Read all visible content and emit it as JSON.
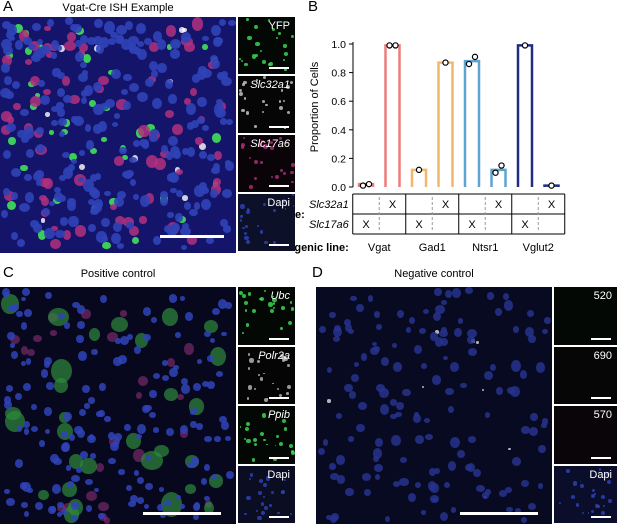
{
  "panels": {
    "A": {
      "letter": "A",
      "title": "Vgat-Cre ISH Example",
      "channels": [
        {
          "label": "YFP",
          "italic": false
        },
        {
          "label": "Slc32a1",
          "italic": true
        },
        {
          "label": "Slc17a6",
          "italic": true
        },
        {
          "label": "Dapi",
          "italic": false
        }
      ]
    },
    "B": {
      "letter": "B"
    },
    "C": {
      "letter": "C",
      "title": "Positive control",
      "channels": [
        {
          "label": "Ubc",
          "italic": true
        },
        {
          "label": "Polr2a",
          "italic": true
        },
        {
          "label": "Ppib",
          "italic": true
        },
        {
          "label": "Dapi",
          "italic": false
        }
      ]
    },
    "D": {
      "letter": "D",
      "title": "Negative control",
      "channels": [
        {
          "label": "520",
          "italic": false
        },
        {
          "label": "690",
          "italic": false
        },
        {
          "label": "570",
          "italic": false
        },
        {
          "label": "Dapi",
          "italic": false
        }
      ]
    }
  },
  "colors": {
    "vgat": "#ef7b7b",
    "gad1": "#f4b66a",
    "ntsr1": "#5fa3d1",
    "vglut2": "#232c84",
    "dapi_blue": "#2f43b8",
    "green_signal": "#3fe05a",
    "magenta_signal": "#b0307e"
  },
  "chart_data": {
    "type": "bar",
    "ylabel": "Proportion of Cells",
    "ylim": [
      0,
      1.0
    ],
    "yticks": [
      "0.0",
      "0.2",
      "0.4",
      "0.6",
      "0.8",
      "1.0"
    ],
    "yticks_values": [
      0,
      0.2,
      0.4,
      0.6,
      0.8,
      1.0
    ],
    "groups": [
      {
        "name": "Vgat",
        "bars": [
          {
            "probe": "Slc17a6",
            "value": 0.02,
            "points": [
              0.01,
              0.02
            ]
          },
          {
            "probe": "Slc32a1",
            "value": 0.99,
            "points": [
              0.99,
              0.99
            ]
          }
        ]
      },
      {
        "name": "Gad1",
        "bars": [
          {
            "probe": "Slc17a6",
            "value": 0.12,
            "points": [
              0.12
            ]
          },
          {
            "probe": "Slc32a1",
            "value": 0.87,
            "points": [
              0.87
            ]
          }
        ]
      },
      {
        "name": "Ntsr1",
        "bars": [
          {
            "probe": "Slc17a6",
            "value": 0.88,
            "points": [
              0.86,
              0.91
            ]
          },
          {
            "probe": "Slc32a1",
            "value": 0.12,
            "points": [
              0.1,
              0.15
            ]
          }
        ]
      },
      {
        "name": "Vglut2",
        "bars": [
          {
            "probe": "Slc17a6",
            "value": 0.99,
            "points": [
              0.99
            ]
          },
          {
            "probe": "Slc32a1",
            "value": 0.01,
            "points": [
              0.01
            ]
          }
        ]
      }
    ],
    "table": {
      "probe_label": "Probe:",
      "line_label": "Transgenic line:",
      "rows": [
        {
          "label": "Slc32a1",
          "marks": [
            "",
            "X",
            "",
            "X",
            "",
            "X",
            "",
            "X"
          ]
        },
        {
          "label": "Slc17a6",
          "marks": [
            "X",
            "",
            "X",
            "",
            "X",
            "",
            "X",
            ""
          ]
        }
      ],
      "lines": [
        "Vgat",
        "Gad1",
        "Ntsr1",
        "Vglut2"
      ]
    }
  }
}
